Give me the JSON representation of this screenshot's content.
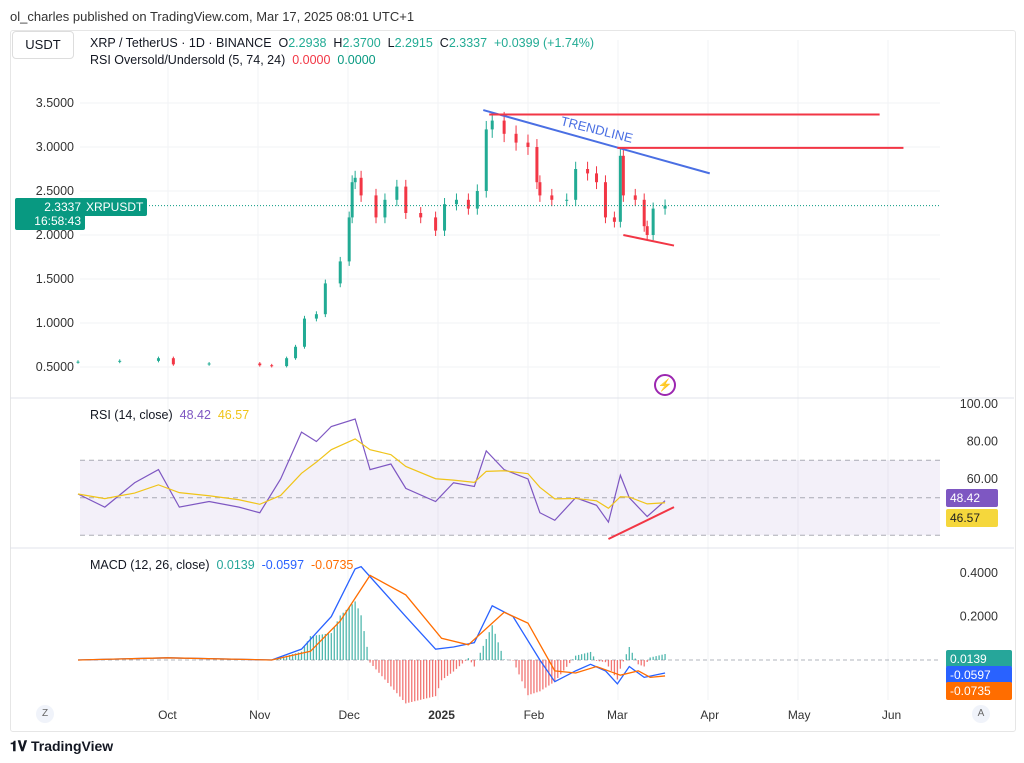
{
  "header": {
    "published": "ol_charles published on TradingView.com, Mar 17, 2025 08:01 UTC+1",
    "currency": "USDT",
    "symbol": "XRP / TetherUS · 1D · BINANCE",
    "o_label": "O",
    "open": "2.2938",
    "h_label": "H",
    "high": "2.3700",
    "l_label": "L",
    "low": "2.2915",
    "c_label": "C",
    "close": "2.3337",
    "change": "+0.0399 (+1.74%)",
    "ind1": "RSI Oversold/Undersold (5, 74, 24)",
    "ind1_v1": "0.0000",
    "ind1_v2": "0.0000"
  },
  "price_tag": {
    "value": "2.3337",
    "countdown": "16:58:43",
    "symbol": "XRPUSDT"
  },
  "rsi_legend": {
    "label": "RSI (14, close)",
    "rsi": "48.42",
    "ma": "46.57"
  },
  "macd_legend": {
    "label": "MACD (12, 26, close)",
    "hist": "0.0139",
    "macd": "-0.0597",
    "signal": "-0.0735"
  },
  "annotation": {
    "trendline_label": "TRENDLINE"
  },
  "footer": {
    "brand": "TradingView",
    "left_btn": "Z",
    "right_btn": "A"
  },
  "colors": {
    "up": "#22ab94",
    "down": "#f23645",
    "rsi": "#7e57c2",
    "rsi_ma": "#f0c419",
    "macd": "#2962ff",
    "signal": "#ff6d00",
    "trendline": "#4a6fe3",
    "levels": "#f23645"
  },
  "chart_data": [
    {
      "type": "candlestick",
      "title": "XRP / TetherUS · 1D · BINANCE",
      "y_ticks": [
        "0.5000",
        "1.0000",
        "1.5000",
        "2.0000",
        "2.5000",
        "3.0000",
        "3.5000"
      ],
      "ylim": [
        0.3,
        3.9
      ],
      "x_ticks": [
        "Oct",
        "Nov",
        "Dec",
        "2025",
        "Feb",
        "Mar",
        "Apr",
        "May",
        "Jun"
      ],
      "closes": [
        [
          "2024-09-01",
          0.56
        ],
        [
          "2024-09-15",
          0.57
        ],
        [
          "2024-09-28",
          0.6
        ],
        [
          "2024-10-03",
          0.53
        ],
        [
          "2024-10-15",
          0.54
        ],
        [
          "2024-11-01",
          0.52
        ],
        [
          "2024-11-05",
          0.51
        ],
        [
          "2024-11-10",
          0.6
        ],
        [
          "2024-11-13",
          0.73
        ],
        [
          "2024-11-16",
          1.05
        ],
        [
          "2024-11-20",
          1.1
        ],
        [
          "2024-11-23",
          1.45
        ],
        [
          "2024-11-28",
          1.7
        ],
        [
          "2024-12-01",
          2.2
        ],
        [
          "2024-12-02",
          2.6
        ],
        [
          "2024-12-03",
          2.65
        ],
        [
          "2024-12-05",
          2.45
        ],
        [
          "2024-12-10",
          2.2
        ],
        [
          "2024-12-13",
          2.4
        ],
        [
          "2024-12-17",
          2.55
        ],
        [
          "2024-12-20",
          2.25
        ],
        [
          "2024-12-25",
          2.2
        ],
        [
          "2024-12-30",
          2.05
        ],
        [
          "2025-01-02",
          2.35
        ],
        [
          "2025-01-06",
          2.4
        ],
        [
          "2025-01-10",
          2.3
        ],
        [
          "2025-01-13",
          2.5
        ],
        [
          "2025-01-16",
          3.2
        ],
        [
          "2025-01-18",
          3.3
        ],
        [
          "2025-01-22",
          3.15
        ],
        [
          "2025-01-26",
          3.05
        ],
        [
          "2025-01-30",
          3.0
        ],
        [
          "2025-02-02",
          2.6
        ],
        [
          "2025-02-03",
          2.45
        ],
        [
          "2025-02-07",
          2.4
        ],
        [
          "2025-02-12",
          2.4
        ],
        [
          "2025-02-15",
          2.75
        ],
        [
          "2025-02-19",
          2.7
        ],
        [
          "2025-02-22",
          2.6
        ],
        [
          "2025-02-25",
          2.2
        ],
        [
          "2025-02-28",
          2.15
        ],
        [
          "2025-03-02",
          2.9
        ],
        [
          "2025-03-03",
          2.45
        ],
        [
          "2025-03-07",
          2.4
        ],
        [
          "2025-03-10",
          2.1
        ],
        [
          "2025-03-11",
          2.0
        ],
        [
          "2025-03-13",
          2.3
        ],
        [
          "2025-03-17",
          2.3337
        ]
      ],
      "drawings": {
        "trendline": [
          [
            "2025-01-15",
            3.42
          ],
          [
            "2025-04-01",
            2.7
          ]
        ],
        "resistance_1": [
          [
            "2025-01-17",
            3.37
          ],
          [
            "2025-05-28",
            3.37
          ]
        ],
        "resistance_2": [
          [
            "2025-03-01",
            2.99
          ],
          [
            "2025-06-05",
            2.99
          ]
        ],
        "support": [
          [
            "2025-03-03",
            2.0
          ],
          [
            "2025-03-20",
            1.88
          ]
        ]
      }
    },
    {
      "type": "line",
      "title": "RSI (14, close)",
      "y_ticks": [
        "60.00",
        "80.00",
        "100.00"
      ],
      "ylim": [
        25,
        100
      ],
      "bands": [
        70,
        50,
        30
      ],
      "series": [
        {
          "name": "RSI",
          "values": [
            [
              "2024-09-01",
              52
            ],
            [
              "2024-09-10",
              45
            ],
            [
              "2024-09-20",
              58
            ],
            [
              "2024-09-28",
              65
            ],
            [
              "2024-10-05",
              45
            ],
            [
              "2024-10-15",
              48
            ],
            [
              "2024-10-25",
              45
            ],
            [
              "2024-11-01",
              42
            ],
            [
              "2024-11-08",
              60
            ],
            [
              "2024-11-15",
              85
            ],
            [
              "2024-11-20",
              80
            ],
            [
              "2024-11-25",
              88
            ],
            [
              "2024-12-03",
              92
            ],
            [
              "2024-12-08",
              65
            ],
            [
              "2024-12-15",
              68
            ],
            [
              "2024-12-20",
              55
            ],
            [
              "2024-12-30",
              48
            ],
            [
              "2025-01-05",
              58
            ],
            [
              "2025-01-12",
              56
            ],
            [
              "2025-01-16",
              75
            ],
            [
              "2025-01-22",
              65
            ],
            [
              "2025-01-30",
              60
            ],
            [
              "2025-02-03",
              42
            ],
            [
              "2025-02-08",
              38
            ],
            [
              "2025-02-15",
              50
            ],
            [
              "2025-02-22",
              46
            ],
            [
              "2025-02-26",
              37
            ],
            [
              "2025-03-02",
              62
            ],
            [
              "2025-03-05",
              50
            ],
            [
              "2025-03-11",
              40
            ],
            [
              "2025-03-17",
              48.42
            ]
          ]
        }
      ],
      "drawings": {
        "divergence": [
          [
            "2025-02-26",
            28
          ],
          [
            "2025-03-20",
            45
          ]
        ]
      }
    },
    {
      "type": "line",
      "title": "MACD (12, 26, close)",
      "y_ticks": [
        "0.2000",
        "0.4000"
      ],
      "ylim": [
        -0.15,
        0.45
      ],
      "series": [
        {
          "name": "MACD",
          "values": [
            [
              "2024-09-01",
              0
            ],
            [
              "2024-10-01",
              0.01
            ],
            [
              "2024-11-05",
              0
            ],
            [
              "2024-11-15",
              0.05
            ],
            [
              "2024-11-25",
              0.2
            ],
            [
              "2024-12-03",
              0.42
            ],
            [
              "2024-12-05",
              0.43
            ],
            [
              "2024-12-20",
              0.2
            ],
            [
              "2024-12-30",
              0.05
            ],
            [
              "2025-01-05",
              0.06
            ],
            [
              "2025-01-12",
              0.08
            ],
            [
              "2025-01-18",
              0.25
            ],
            [
              "2025-01-25",
              0.2
            ],
            [
              "2025-02-03",
              0.0
            ],
            [
              "2025-02-08",
              -0.1
            ],
            [
              "2025-02-15",
              -0.05
            ],
            [
              "2025-02-20",
              -0.02
            ],
            [
              "2025-02-25",
              -0.05
            ],
            [
              "2025-03-01",
              -0.11
            ],
            [
              "2025-03-05",
              -0.03
            ],
            [
              "2025-03-10",
              -0.08
            ],
            [
              "2025-03-17",
              -0.0597
            ]
          ]
        },
        {
          "name": "Signal",
          "values": [
            [
              "2024-09-01",
              0
            ],
            [
              "2024-10-01",
              0.01
            ],
            [
              "2024-11-05",
              0
            ],
            [
              "2024-11-18",
              0.04
            ],
            [
              "2024-11-28",
              0.18
            ],
            [
              "2024-12-08",
              0.39
            ],
            [
              "2024-12-20",
              0.3
            ],
            [
              "2025-01-01",
              0.1
            ],
            [
              "2025-01-10",
              0.07
            ],
            [
              "2025-01-22",
              0.22
            ],
            [
              "2025-01-30",
              0.17
            ],
            [
              "2025-02-08",
              -0.05
            ],
            [
              "2025-02-15",
              -0.06
            ],
            [
              "2025-02-22",
              -0.03
            ],
            [
              "2025-03-02",
              -0.07
            ],
            [
              "2025-03-08",
              -0.05
            ],
            [
              "2025-03-12",
              -0.08
            ],
            [
              "2025-03-17",
              -0.0735
            ]
          ]
        }
      ]
    }
  ]
}
